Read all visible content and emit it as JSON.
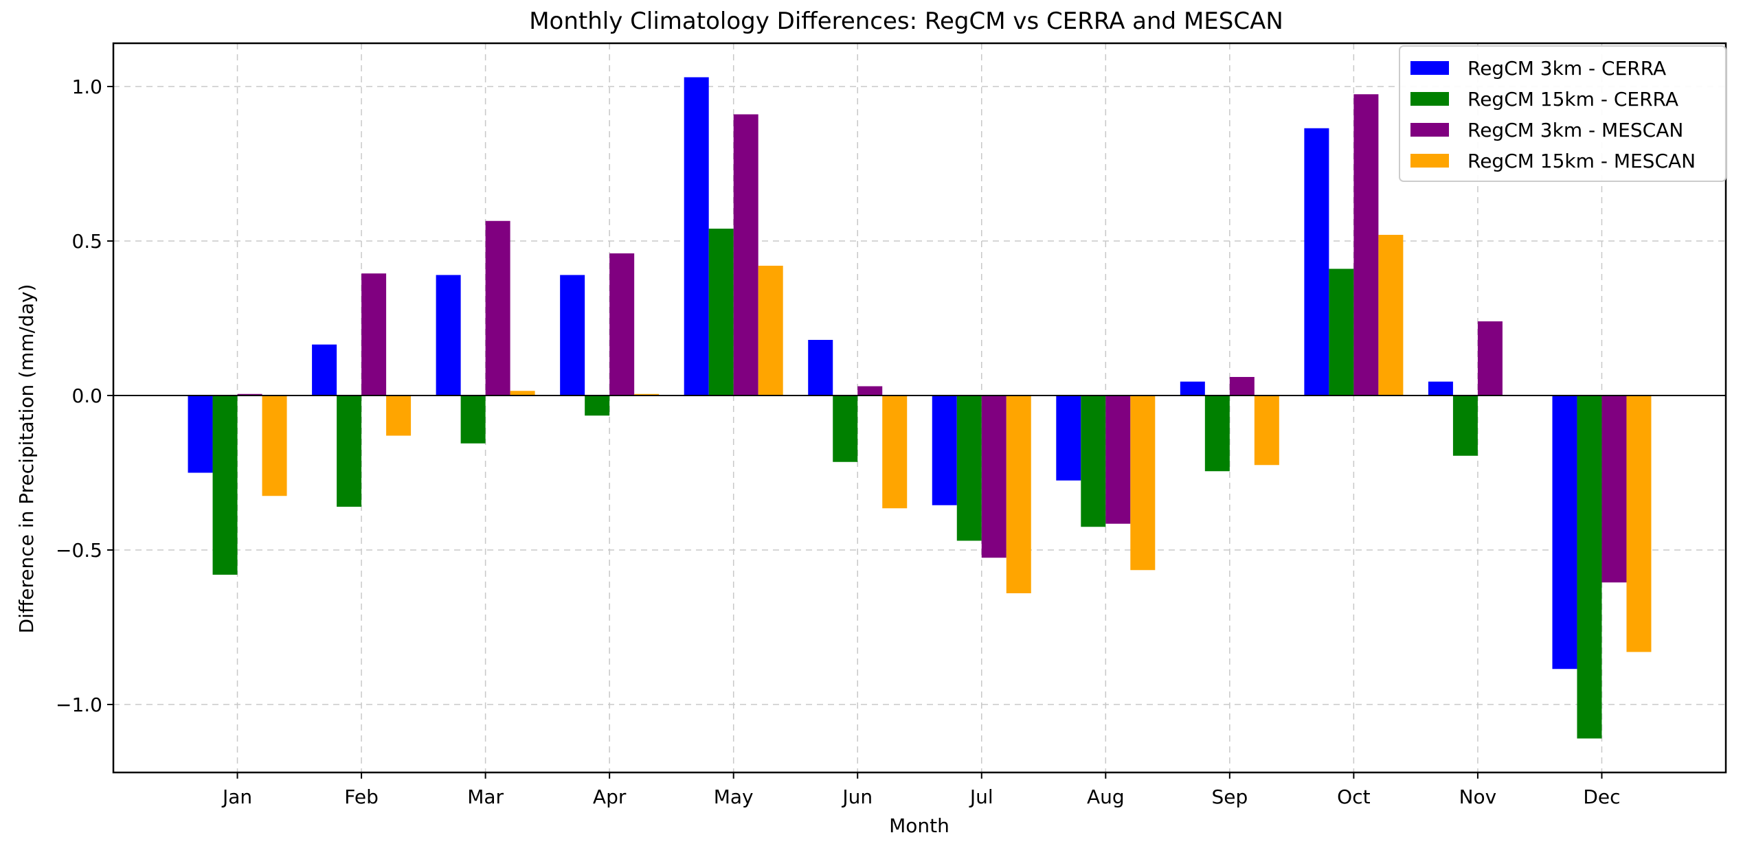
{
  "chart_data": {
    "type": "bar",
    "title": "Monthly Climatology Differences: RegCM vs CERRA and MESCAN",
    "xlabel": "Month",
    "ylabel": "Difference in Precipitation (mm/day)",
    "categories": [
      "Jan",
      "Feb",
      "Mar",
      "Apr",
      "May",
      "Jun",
      "Jul",
      "Aug",
      "Sep",
      "Oct",
      "Nov",
      "Dec"
    ],
    "ylim": [
      -1.22,
      1.14
    ],
    "yticks": [
      -1.0,
      -0.5,
      0.0,
      0.5,
      1.0
    ],
    "ytick_labels": [
      "−1.0",
      "−0.5",
      "0.0",
      "0.5",
      "1.0"
    ],
    "grid": true,
    "legend_position": "top-right",
    "series": [
      {
        "name": "RegCM 3km - CERRA",
        "color": "#0000ff",
        "values": [
          -0.25,
          0.165,
          0.39,
          0.39,
          1.03,
          0.18,
          -0.355,
          -0.275,
          0.045,
          0.865,
          0.045,
          -0.885
        ]
      },
      {
        "name": "RegCM 15km - CERRA",
        "color": "#008000",
        "values": [
          -0.58,
          -0.36,
          -0.155,
          -0.065,
          0.54,
          -0.215,
          -0.47,
          -0.425,
          -0.245,
          0.41,
          -0.195,
          -1.11
        ]
      },
      {
        "name": "RegCM 3km - MESCAN",
        "color": "#800080",
        "values": [
          0.005,
          0.395,
          0.565,
          0.46,
          0.91,
          0.03,
          -0.525,
          -0.415,
          0.06,
          0.975,
          0.24,
          -0.605
        ]
      },
      {
        "name": "RegCM 15km - MESCAN",
        "color": "#ffa500",
        "values": [
          -0.325,
          -0.13,
          0.015,
          0.005,
          0.42,
          -0.365,
          -0.64,
          -0.565,
          -0.225,
          0.52,
          0.0,
          -0.83
        ]
      }
    ]
  }
}
